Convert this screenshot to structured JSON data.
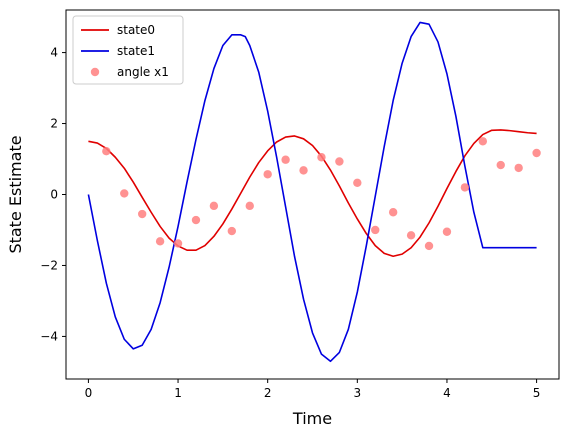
{
  "chart_data": {
    "type": "line",
    "xlabel": "Time",
    "ylabel": "State Estimate",
    "xlim": [
      -0.25,
      5.25
    ],
    "ylim": [
      -5.2,
      5.2
    ],
    "x_ticks": [
      0,
      1,
      2,
      3,
      4,
      5
    ],
    "y_ticks": [
      -4,
      -2,
      0,
      2,
      4
    ],
    "x_tick_labels": [
      "0",
      "1",
      "2",
      "3",
      "4",
      "5"
    ],
    "y_tick_labels": [
      "−4",
      "−2",
      "0",
      "2",
      "4"
    ],
    "grid": false,
    "legend_position": "top-left",
    "series": [
      {
        "name": "state0",
        "kind": "line",
        "color": "#e00000",
        "x": [
          0,
          0.1,
          0.2,
          0.3,
          0.4,
          0.5,
          0.6,
          0.7,
          0.8,
          0.9,
          1.0,
          1.1,
          1.2,
          1.3,
          1.4,
          1.5,
          1.6,
          1.7,
          1.8,
          1.9,
          2.0,
          2.1,
          2.2,
          2.3,
          2.4,
          2.5,
          2.6,
          2.7,
          2.8,
          2.9,
          3.0,
          3.1,
          3.2,
          3.3,
          3.4,
          3.5,
          3.6,
          3.7,
          3.8,
          3.9,
          4.0,
          4.1,
          4.2,
          4.3,
          4.4,
          4.5,
          4.6,
          4.7,
          4.8,
          4.9,
          5.0
        ],
        "y": [
          1.5,
          1.45,
          1.3,
          1.05,
          0.74,
          0.35,
          -0.08,
          -0.5,
          -0.9,
          -1.23,
          -1.45,
          -1.57,
          -1.57,
          -1.44,
          -1.18,
          -0.83,
          -0.41,
          0.04,
          0.49,
          0.9,
          1.23,
          1.48,
          1.62,
          1.65,
          1.57,
          1.38,
          1.08,
          0.69,
          0.24,
          -0.24,
          -0.69,
          -1.1,
          -1.44,
          -1.66,
          -1.74,
          -1.68,
          -1.5,
          -1.2,
          -0.8,
          -0.33,
          0.17,
          0.65,
          1.09,
          1.44,
          1.69,
          1.81,
          1.82,
          1.8,
          1.77,
          1.74,
          1.72
        ]
      },
      {
        "name": "state1",
        "kind": "line",
        "color": "#0000e0",
        "x": [
          0,
          0.1,
          0.2,
          0.3,
          0.4,
          0.5,
          0.6,
          0.7,
          0.8,
          0.9,
          1.0,
          1.1,
          1.2,
          1.3,
          1.4,
          1.5,
          1.6,
          1.7,
          1.75,
          1.8,
          1.9,
          2.0,
          2.1,
          2.2,
          2.3,
          2.4,
          2.5,
          2.6,
          2.7,
          2.8,
          2.9,
          3.0,
          3.1,
          3.2,
          3.3,
          3.4,
          3.5,
          3.6,
          3.7,
          3.8,
          3.9,
          4.0,
          4.1,
          4.2,
          4.3,
          4.4,
          4.5,
          4.6,
          4.7,
          4.8,
          4.9,
          5.0
        ],
        "y": [
          0,
          -1.3,
          -2.5,
          -3.45,
          -4.08,
          -4.35,
          -4.25,
          -3.8,
          -3.05,
          -2.05,
          -0.9,
          0.35,
          1.55,
          2.65,
          3.55,
          4.2,
          4.5,
          4.5,
          4.45,
          4.2,
          3.45,
          2.35,
          1.05,
          -0.35,
          -1.75,
          -2.95,
          -3.9,
          -4.5,
          -4.7,
          -4.45,
          -3.8,
          -2.75,
          -1.45,
          -0.05,
          1.35,
          2.65,
          3.7,
          4.45,
          4.85,
          4.8,
          4.3,
          3.4,
          2.2,
          0.8,
          -0.5,
          -1.5,
          -1.5,
          -1.5,
          -1.5,
          -1.5,
          -1.5,
          -1.5
        ]
      },
      {
        "name": "angle x1",
        "kind": "scatter",
        "color": "#ff7f7f",
        "x": [
          0.2,
          0.4,
          0.6,
          0.8,
          1.0,
          1.2,
          1.4,
          1.6,
          1.8,
          2.0,
          2.2,
          2.4,
          2.6,
          2.8,
          3.0,
          3.2,
          3.4,
          3.6,
          3.8,
          4.0,
          4.2,
          4.4,
          4.6,
          4.8,
          5.0
        ],
        "y": [
          1.22,
          0.03,
          -0.55,
          -1.32,
          -1.38,
          -0.72,
          -0.32,
          -1.03,
          -0.32,
          0.57,
          0.98,
          0.68,
          1.05,
          0.93,
          0.33,
          -1.0,
          -0.5,
          -1.15,
          -1.45,
          -1.05,
          0.2,
          1.5,
          0.83,
          0.75,
          1.17
        ]
      }
    ]
  }
}
